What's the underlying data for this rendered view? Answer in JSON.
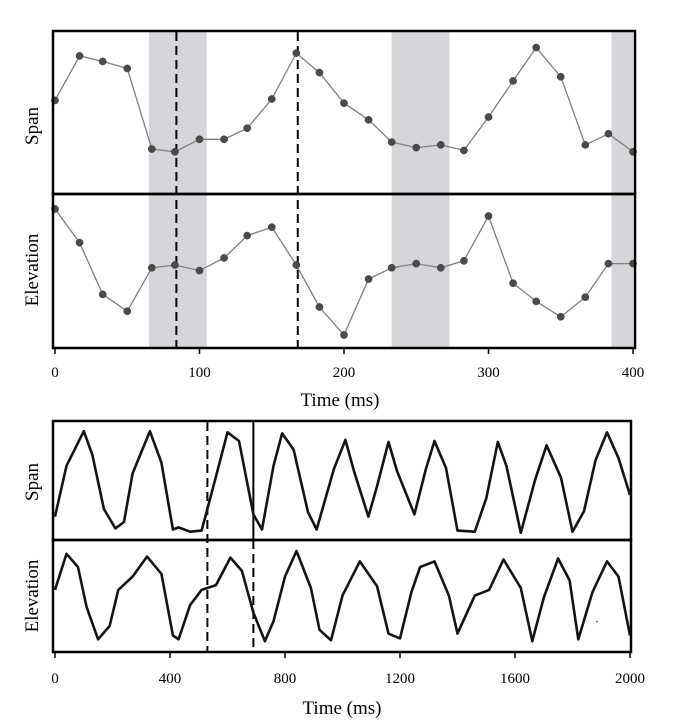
{
  "chart_data": [
    {
      "type": "line",
      "xlabel": "Time (ms)",
      "xlim": [
        0,
        400
      ],
      "xticks": [
        "0",
        "100",
        "200",
        "300",
        "400"
      ],
      "x": [
        0,
        17,
        33,
        50,
        67,
        83,
        100,
        117,
        133,
        150,
        167,
        183,
        200,
        217,
        233,
        250,
        267,
        283,
        300,
        317,
        333,
        350,
        367,
        383,
        400
      ],
      "shaded_intervals": [
        [
          65,
          105
        ],
        [
          233,
          273
        ],
        [
          385,
          400
        ]
      ],
      "markers": [
        {
          "x": 84,
          "style": "dashed"
        },
        {
          "x": 168,
          "style": "dashed"
        }
      ],
      "series": [
        {
          "name": "Span",
          "ylim": [
            0,
            10
          ],
          "values": [
            5.8,
            9.0,
            8.6,
            8.1,
            2.3,
            2.1,
            3.0,
            3.0,
            3.8,
            5.9,
            9.2,
            7.8,
            5.6,
            4.4,
            2.8,
            2.4,
            2.6,
            2.2,
            4.6,
            7.2,
            9.6,
            7.5,
            2.6,
            3.4,
            2.1
          ]
        },
        {
          "name": "Elevation",
          "ylim": [
            0,
            10
          ],
          "values": [
            9.5,
            7.1,
            3.4,
            2.2,
            5.3,
            5.5,
            5.1,
            6.0,
            7.6,
            8.2,
            5.5,
            2.5,
            0.5,
            4.5,
            5.3,
            5.6,
            5.3,
            5.8,
            9.0,
            4.2,
            2.9,
            1.8,
            3.2,
            5.6,
            5.6
          ]
        }
      ]
    },
    {
      "type": "line",
      "xlabel": "Time (ms)",
      "xlim": [
        0,
        2000
      ],
      "xticks": [
        "0",
        "400",
        "800",
        "1200",
        "1600",
        "2000"
      ],
      "markers": [
        {
          "x": 530,
          "style": "dashed"
        },
        {
          "x": 690,
          "style": "solid",
          "panel": "Span"
        },
        {
          "x": 690,
          "style": "dashed",
          "panel": "Elevation"
        }
      ],
      "series": [
        {
          "name": "Span",
          "ylim": [
            0,
            10
          ],
          "x": [
            0,
            40,
            100,
            130,
            170,
            210,
            240,
            270,
            330,
            370,
            410,
            430,
            470,
            510,
            550,
            600,
            640,
            690,
            720,
            760,
            790,
            830,
            880,
            910,
            970,
            1010,
            1040,
            1090,
            1120,
            1160,
            1190,
            1250,
            1290,
            1320,
            1360,
            1400,
            1460,
            1500,
            1540,
            1570,
            1620,
            1670,
            1710,
            1760,
            1800,
            1840,
            1880,
            1920,
            1960,
            2000
          ],
          "values": [
            1.8,
            6.5,
            9.7,
            7.5,
            2.5,
            0.7,
            1.3,
            5.8,
            9.7,
            6.8,
            0.6,
            0.8,
            0.4,
            0.5,
            4.5,
            9.6,
            8.8,
            2.0,
            0.6,
            6.5,
            9.5,
            8.0,
            2.2,
            0.6,
            6.2,
            8.9,
            6.0,
            1.8,
            4.6,
            8.7,
            6.0,
            2.0,
            6.2,
            8.8,
            6.3,
            0.5,
            0.4,
            3.5,
            8.7,
            6.5,
            0.3,
            5.2,
            8.4,
            5.4,
            0.4,
            2.3,
            7.0,
            9.6,
            7.2,
            3.8
          ]
        },
        {
          "name": "Elevation",
          "ylim": [
            0,
            10
          ],
          "x": [
            0,
            40,
            80,
            110,
            150,
            190,
            220,
            270,
            320,
            370,
            410,
            430,
            470,
            510,
            560,
            610,
            650,
            690,
            730,
            760,
            800,
            840,
            890,
            920,
            960,
            1000,
            1060,
            1120,
            1160,
            1200,
            1240,
            1270,
            1320,
            1370,
            1400,
            1460,
            1510,
            1560,
            1620,
            1660,
            1700,
            1750,
            1790,
            1820,
            1870,
            1920,
            1960,
            2000
          ],
          "values": [
            5.8,
            9.6,
            8.2,
            4.0,
            0.6,
            2.0,
            5.8,
            7.2,
            9.3,
            7.5,
            1.0,
            0.6,
            4.2,
            5.8,
            6.3,
            9.2,
            7.8,
            3.4,
            0.4,
            2.5,
            7.2,
            9.9,
            6.0,
            1.6,
            0.5,
            5.2,
            8.8,
            6.2,
            1.2,
            0.7,
            5.6,
            8.2,
            8.8,
            5.2,
            1.2,
            5.2,
            5.8,
            9.0,
            6.0,
            0.4,
            5.0,
            9.1,
            6.8,
            0.6,
            5.6,
            8.8,
            7.2,
            1.0
          ]
        }
      ]
    }
  ]
}
